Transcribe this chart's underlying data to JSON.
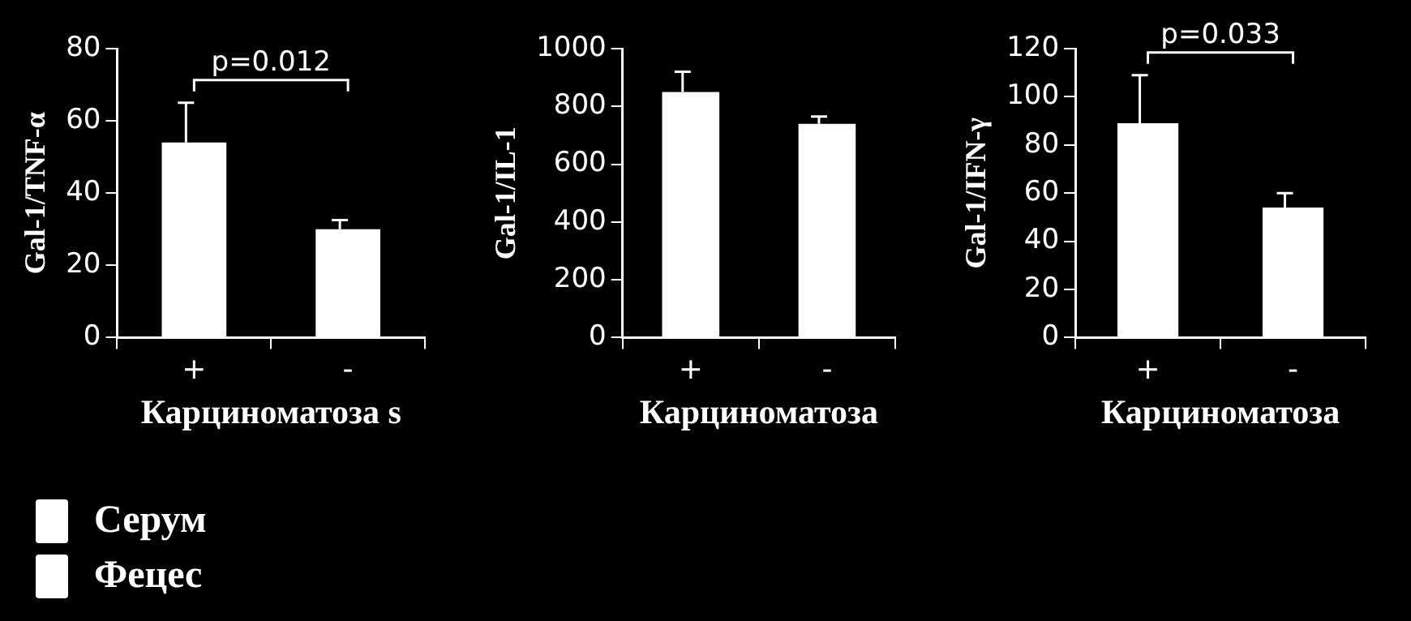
{
  "chart_data": [
    {
      "type": "bar",
      "categories": [
        "+",
        "-"
      ],
      "values": [
        54,
        30
      ],
      "color": "#ffffff",
      "errors": [
        [
          54,
          65
        ],
        [
          30,
          32.5
        ]
      ],
      "ylim": [
        0,
        80
      ],
      "yticks": [
        0,
        20,
        40,
        60,
        80
      ],
      "xlabel": "Карциноматоза s",
      "ylabel": "Gal-1/TNF-α",
      "annotations": [
        "p=0.012"
      ]
    },
    {
      "type": "bar",
      "categories": [
        "+",
        "-"
      ],
      "values": [
        850,
        740
      ],
      "color": "#ffffff",
      "errors": [
        [
          850,
          920
        ],
        [
          740,
          765
        ]
      ],
      "ylim": [
        0,
        1000
      ],
      "yticks": [
        0,
        200,
        400,
        600,
        800,
        1000
      ],
      "xlabel": "Карциноматоза",
      "ylabel": "Gal-1/IL-1"
    },
    {
      "type": "bar",
      "categories": [
        "+",
        "-"
      ],
      "values": [
        89,
        54
      ],
      "color": "#ffffff",
      "errors": [
        [
          89,
          109
        ],
        [
          54,
          60
        ]
      ],
      "ylim": [
        0,
        120
      ],
      "yticks": [
        0,
        20,
        40,
        60,
        80,
        100,
        120
      ],
      "xlabel": "Карциноматоза",
      "ylabel": "Gal-1/IFN-γ",
      "annotations": [
        "p=0.033"
      ]
    },
    {
      "type": "other",
      "annotations": [
        "Серум",
        "Фецес"
      ]
    }
  ]
}
